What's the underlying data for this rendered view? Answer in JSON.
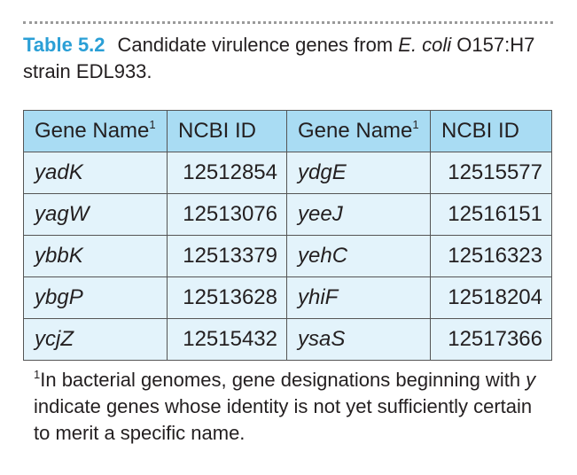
{
  "caption": {
    "label": "Table 5.2",
    "text_before": "Candidate virulence genes from ",
    "organism": "E. coli",
    "text_after": " O157:H7 strain EDL933."
  },
  "table": {
    "headers": [
      "Gene Name",
      "NCBI ID",
      "Gene Name",
      "NCBI ID"
    ],
    "header_footnote_mark": "1",
    "rows": [
      {
        "gene_a": "yadK",
        "id_a": "12512854",
        "gene_b": "ydgE",
        "id_b": "12515577"
      },
      {
        "gene_a": "yagW",
        "id_a": "12513076",
        "gene_b": "yeeJ",
        "id_b": "12516151"
      },
      {
        "gene_a": "ybbK",
        "id_a": "12513379",
        "gene_b": "yehC",
        "id_b": "12516323"
      },
      {
        "gene_a": "ybgP",
        "id_a": "12513628",
        "gene_b": "yhiF",
        "id_b": "12518204"
      },
      {
        "gene_a": "ycjZ",
        "id_a": "12515432",
        "gene_b": "ysaS",
        "id_b": "12517366"
      }
    ]
  },
  "footnote": {
    "mark": "1",
    "text_before": "In bacterial genomes, gene designations beginning with ",
    "letter": "y",
    "text_after": " indicate genes whose identity is not yet sufficiently certain to merit a specific name."
  },
  "colors": {
    "label_blue": "#2a9fd6",
    "header_bg": "#a9dcf3",
    "cell_bg": "#e3f3fb"
  }
}
